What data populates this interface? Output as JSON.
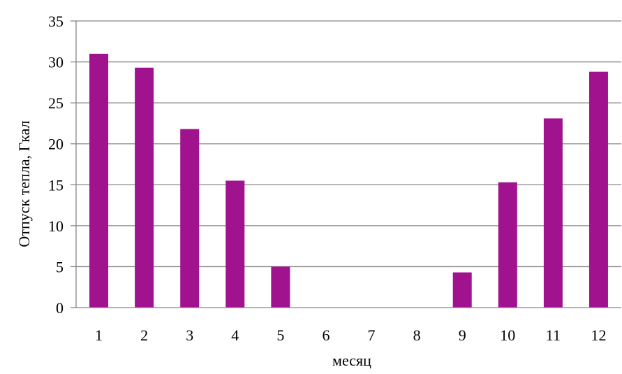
{
  "chart_data": {
    "type": "bar",
    "title": "",
    "xlabel": "месяц",
    "ylabel": "Отпуск тепла, Гкал",
    "categories": [
      "1",
      "2",
      "3",
      "4",
      "5",
      "6",
      "7",
      "8",
      "9",
      "10",
      "11",
      "12"
    ],
    "values": [
      31.0,
      29.3,
      21.8,
      15.5,
      5.0,
      0,
      0,
      0,
      4.3,
      15.3,
      23.1,
      28.8
    ],
    "ylim": [
      0,
      35
    ],
    "yticks": [
      0,
      5,
      10,
      15,
      20,
      25,
      30,
      35
    ],
    "grid": true,
    "legend": "none",
    "colors": {
      "bar": "#a1128f",
      "grid": "#868686",
      "axis": "#868686"
    }
  }
}
